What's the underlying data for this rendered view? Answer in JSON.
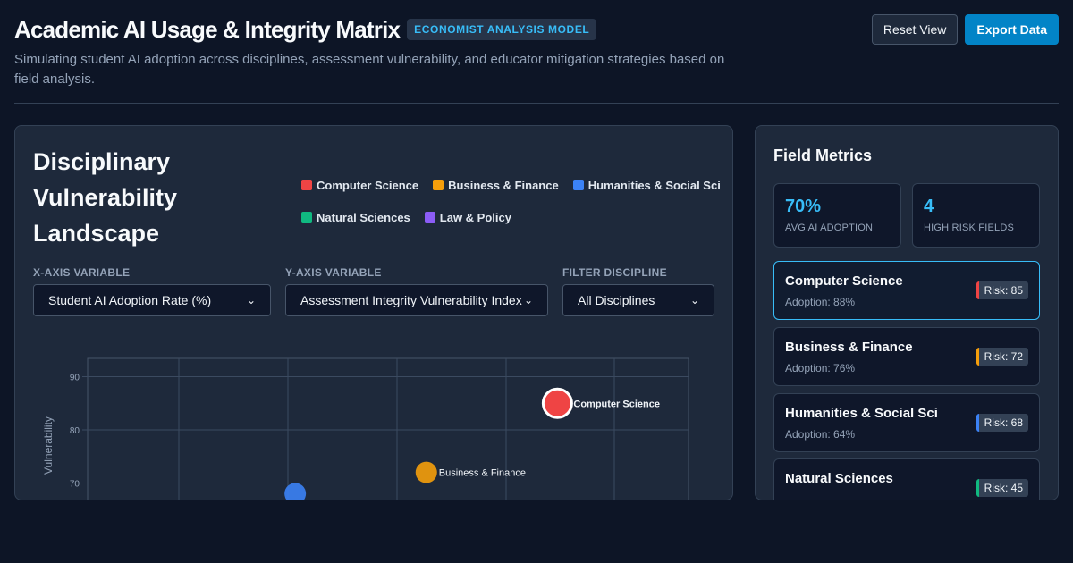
{
  "header": {
    "title": "Academic AI Usage & Integrity Matrix",
    "badge": "ECONOMIST ANALYSIS MODEL",
    "subtitle": "Simulating student AI adoption across disciplines, assessment vulnerability, and educator mitigation strategies based on field analysis.",
    "reset_label": "Reset View",
    "export_label": "Export Data"
  },
  "chart_panel": {
    "title": "Disciplinary Vulnerability Landscape",
    "legend": [
      {
        "label": "Computer Science",
        "color": "#ef4444"
      },
      {
        "label": "Business & Finance",
        "color": "#f59e0b"
      },
      {
        "label": "Humanities & Social Sci",
        "color": "#3b82f6"
      },
      {
        "label": "Natural Sciences",
        "color": "#10b981"
      },
      {
        "label": "Law & Policy",
        "color": "#8b5cf6"
      }
    ],
    "controls": {
      "x_label": "X-AXIS VARIABLE",
      "x_value": "Student AI Adoption Rate (%)",
      "y_label": "Y-AXIS VARIABLE",
      "y_value": "Assessment Integrity Vulnerability Index",
      "filter_label": "FILTER DISCIPLINE",
      "filter_value": "All Disciplines"
    }
  },
  "chart_data": {
    "type": "scatter",
    "ylabel": "Vulnerability",
    "ylim": [
      63,
      93
    ],
    "xlim": [
      45,
      100
    ],
    "y_ticks": [
      70,
      80,
      90
    ],
    "points": [
      {
        "name": "Computer Science",
        "x": 88,
        "y": 85,
        "color": "#ef4444",
        "label": "Computer Science",
        "highlight": true
      },
      {
        "name": "Business & Finance",
        "x": 76,
        "y": 72,
        "color": "#f59e0b",
        "label": "Business & Finance",
        "highlight": false
      },
      {
        "name": "Humanities & Social Sci",
        "x": 64,
        "y": 68,
        "color": "#3b82f6",
        "label": "",
        "highlight": false
      }
    ]
  },
  "metrics": {
    "title": "Field Metrics",
    "stats": [
      {
        "value": "70%",
        "label": "AVG AI ADOPTION"
      },
      {
        "value": "4",
        "label": "HIGH RISK FIELDS"
      }
    ],
    "fields": [
      {
        "name": "Computer Science",
        "adoption": "Adoption: 88%",
        "risk": "Risk: 85",
        "color": "#ef4444"
      },
      {
        "name": "Business & Finance",
        "adoption": "Adoption: 76%",
        "risk": "Risk: 72",
        "color": "#f59e0b"
      },
      {
        "name": "Humanities & Social Sci",
        "adoption": "Adoption: 64%",
        "risk": "Risk: 68",
        "color": "#3b82f6"
      },
      {
        "name": "Natural Sciences",
        "adoption": "",
        "risk": "Risk: 45",
        "color": "#10b981"
      }
    ]
  }
}
